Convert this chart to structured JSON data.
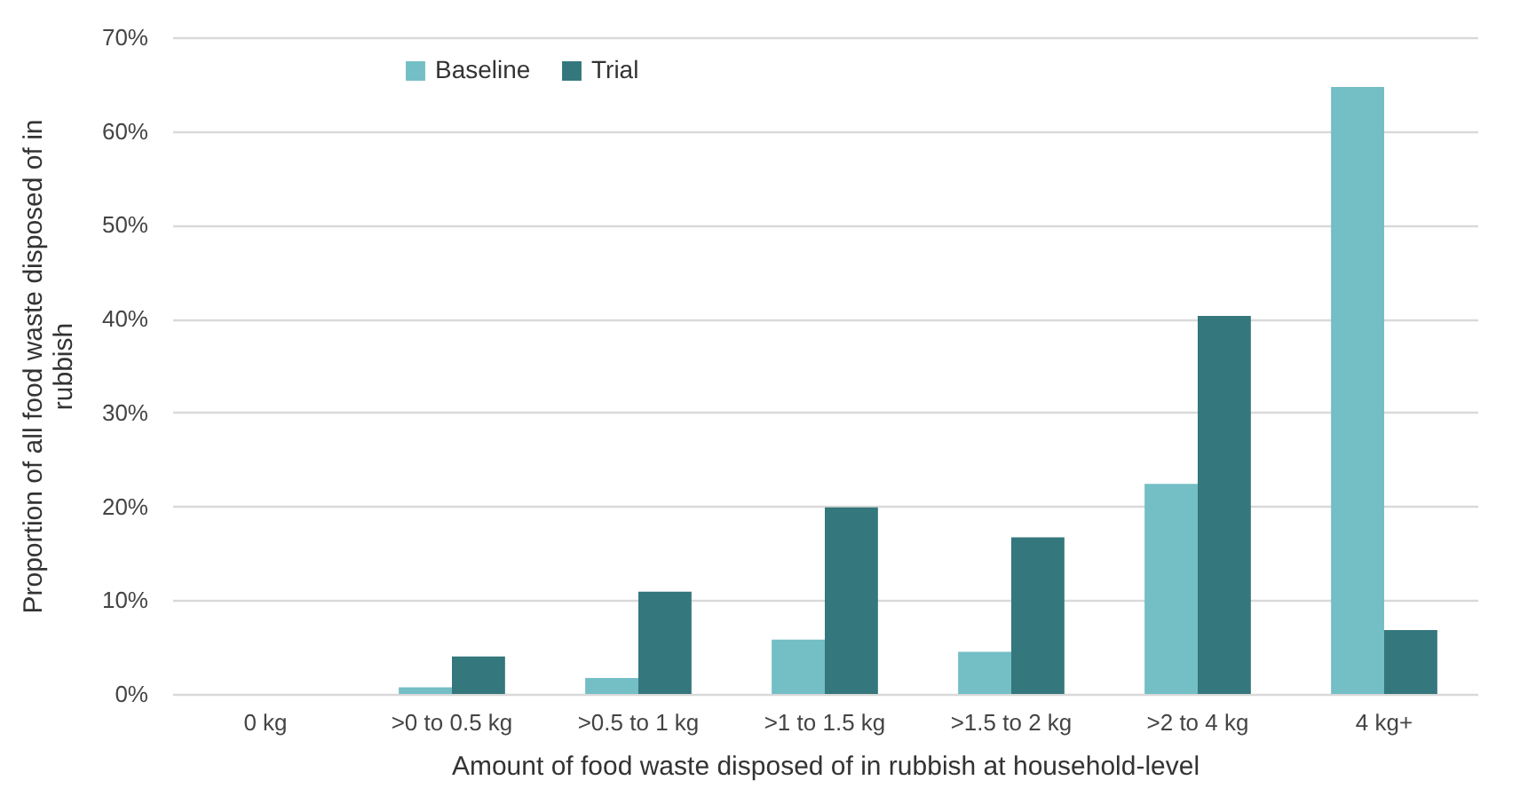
{
  "chart_data": {
    "type": "bar",
    "xlabel": "Amount of food waste disposed of in rubbish at household-level",
    "ylabel": "Proportion of all food waste disposed of in rubbish",
    "categories": [
      "0 kg",
      ">0 to 0.5 kg",
      ">0.5 to 1 kg",
      ">1  to 1.5 kg",
      ">1.5 to 2 kg",
      ">2 to 4 kg",
      "4 kg+"
    ],
    "series": [
      {
        "name": "Baseline",
        "color": "#74bec5",
        "values": [
          0,
          0.7,
          1.7,
          5.8,
          4.5,
          22.4,
          64.7
        ]
      },
      {
        "name": "Trial",
        "color": "#34777c",
        "values": [
          0,
          4.0,
          10.9,
          19.9,
          16.7,
          40.3,
          6.8
        ]
      }
    ],
    "ylim": [
      0,
      70
    ],
    "yticks": [
      {
        "value": 0,
        "label": "0%"
      },
      {
        "value": 10,
        "label": "10%"
      },
      {
        "value": 20,
        "label": "20%"
      },
      {
        "value": 30,
        "label": "30%"
      },
      {
        "value": 40,
        "label": "40%"
      },
      {
        "value": 50,
        "label": "50%"
      },
      {
        "value": 60,
        "label": "60%"
      },
      {
        "value": 70,
        "label": "70%"
      }
    ],
    "grid": "y",
    "legend": "top left"
  }
}
